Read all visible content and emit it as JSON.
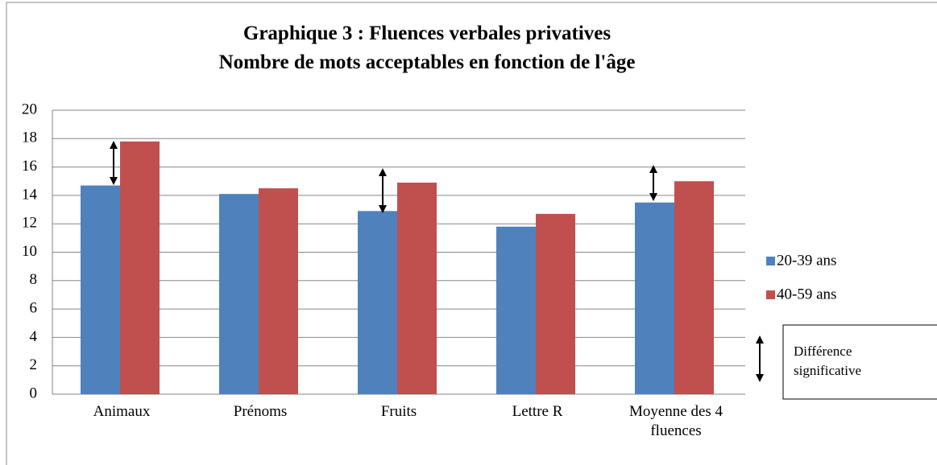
{
  "chart_data": {
    "type": "bar",
    "title": "Graphique 3 : Fluences verbales privatives",
    "subtitle": "Nombre de mots acceptables en fonction de l'âge",
    "categories": [
      "Animaux",
      "Prénoms",
      "Fruits",
      "Lettre R",
      "Moyenne des 4 fluences"
    ],
    "series": [
      {
        "name": "20-39 ans",
        "color": "#4f81bd",
        "values": [
          14.7,
          14.1,
          12.9,
          11.8,
          13.5
        ]
      },
      {
        "name": "40-59 ans",
        "color": "#c0504d",
        "values": [
          17.8,
          14.5,
          14.9,
          12.7,
          15.0
        ]
      }
    ],
    "ylim": [
      0,
      20
    ],
    "yticks": [
      0,
      2,
      4,
      6,
      8,
      10,
      12,
      14,
      16,
      18,
      20
    ],
    "grid": true,
    "legend": "right",
    "annotation": "Différence significative"
  }
}
